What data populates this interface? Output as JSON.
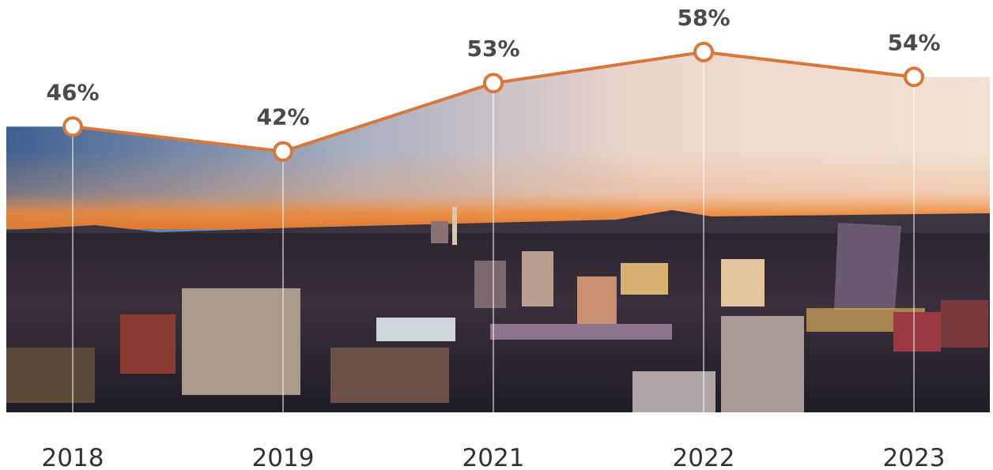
{
  "chart_data": {
    "type": "line",
    "categories": [
      "2018",
      "2019",
      "2021",
      "2022",
      "2023"
    ],
    "values": [
      46,
      42,
      53,
      58,
      54
    ],
    "value_labels": [
      "46%",
      "42%",
      "53%",
      "58%",
      "54%"
    ],
    "color": "#d9773a",
    "ylim": [
      0,
      66
    ]
  }
}
